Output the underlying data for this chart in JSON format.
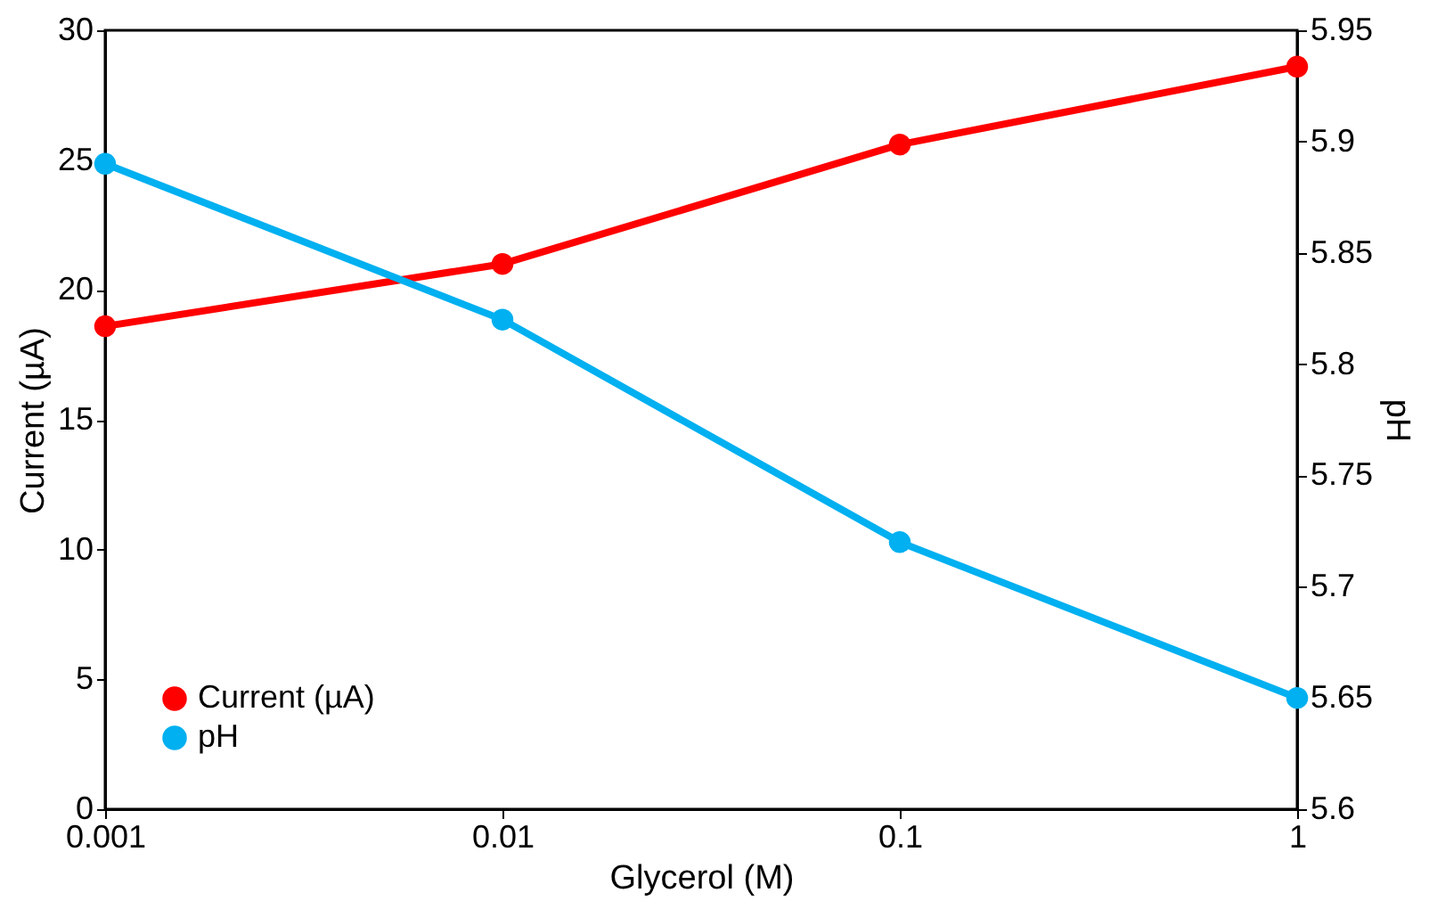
{
  "chart_data": {
    "type": "line",
    "xlabel": "Glycerol (M)",
    "ylabel": "Current (µA)",
    "y2label": "pH",
    "x": [
      0.001,
      0.01,
      0.1,
      1
    ],
    "series": [
      {
        "name": "Current (µA)",
        "color": "#ff0000",
        "values": [
          18.6,
          21.0,
          25.6,
          28.6
        ]
      },
      {
        "name": "pH",
        "color": "#00b0f0",
        "values": [
          5.89,
          5.82,
          5.72,
          5.65
        ],
        "axis": "y2"
      }
    ],
    "log": "x",
    "xlim": [
      0.001,
      1
    ],
    "xticks": [
      0.001,
      0.01,
      0.1,
      1
    ],
    "ylim": [
      0,
      30
    ],
    "yticks": [
      0,
      5,
      10,
      15,
      20,
      25,
      30
    ],
    "y2lim": [
      5.6,
      5.95
    ],
    "y2ticks": [
      5.6,
      5.65,
      5.7,
      5.75,
      5.8,
      5.85,
      5.9,
      5.95
    ],
    "grid": false,
    "legend": "bottom left",
    "marker": "circle",
    "line_style": "solid"
  }
}
